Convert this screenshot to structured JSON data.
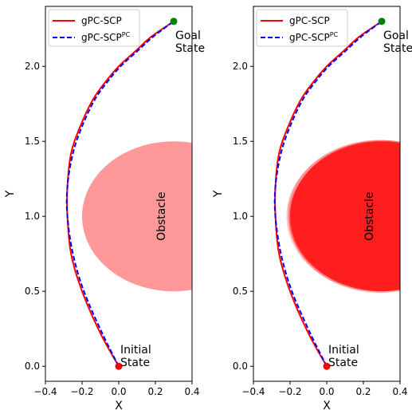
{
  "chart_data": [
    {
      "type": "line",
      "xlabel": "X",
      "ylabel": "Y",
      "xlim": [
        -0.4,
        0.4
      ],
      "ylim": [
        -0.1,
        2.4
      ],
      "xticks": [
        "−0.4",
        "−0.2",
        "0.0",
        "0.2",
        "0.4"
      ],
      "yticks": [
        "0.0",
        "0.5",
        "1.0",
        "1.5",
        "2.0"
      ],
      "grid": false,
      "legend_position": "top-left",
      "series": [
        {
          "name": "gPC-SCP",
          "color": "#ff0000",
          "style": "solid",
          "x": [
            0.0,
            -0.1,
            -0.2,
            -0.26,
            -0.28,
            -0.28,
            -0.26,
            -0.21,
            -0.14,
            -0.07,
            0.0,
            0.09,
            0.18,
            0.3
          ],
          "y": [
            0.0,
            0.22,
            0.5,
            0.75,
            1.0,
            1.2,
            1.42,
            1.6,
            1.78,
            1.9,
            2.0,
            2.1,
            2.2,
            2.3
          ]
        },
        {
          "name": "gPC-SCP^PC",
          "color": "#0000ff",
          "style": "dashed",
          "x": [
            0.0,
            -0.09,
            -0.19,
            -0.25,
            -0.28,
            -0.28,
            -0.25,
            -0.2,
            -0.13,
            -0.06,
            0.01,
            0.1,
            0.19,
            0.3
          ],
          "y": [
            0.0,
            0.22,
            0.5,
            0.75,
            1.0,
            1.2,
            1.42,
            1.6,
            1.78,
            1.9,
            2.0,
            2.1,
            2.2,
            2.3
          ]
        }
      ],
      "points": [
        {
          "name": "initial",
          "x": 0.0,
          "y": 0.0,
          "color": "#ff0000"
        },
        {
          "name": "goal",
          "x": 0.3,
          "y": 2.3,
          "color": "#008000"
        }
      ],
      "obstacle": {
        "cx": 0.3,
        "cy": 1.0,
        "r": 0.5,
        "color": "#ff9999",
        "label": "Obstacle"
      },
      "annotations": {
        "initial": [
          "Initial",
          "State"
        ],
        "goal": [
          "Goal",
          "State"
        ]
      }
    },
    {
      "type": "line",
      "xlabel": "X",
      "ylabel": "Y",
      "xlim": [
        -0.4,
        0.4
      ],
      "ylim": [
        -0.1,
        2.4
      ],
      "xticks": [
        "−0.4",
        "−0.2",
        "0.0",
        "0.2",
        "0.4"
      ],
      "yticks": [
        "0.0",
        "0.5",
        "1.0",
        "1.5",
        "2.0"
      ],
      "grid": false,
      "legend_position": "top-left",
      "series": [
        {
          "name": "gPC-SCP",
          "color": "#ff0000",
          "style": "solid",
          "x": [
            0.0,
            -0.1,
            -0.2,
            -0.26,
            -0.28,
            -0.28,
            -0.26,
            -0.21,
            -0.14,
            -0.07,
            0.0,
            0.09,
            0.18,
            0.3
          ],
          "y": [
            0.0,
            0.22,
            0.5,
            0.75,
            1.0,
            1.2,
            1.42,
            1.6,
            1.78,
            1.9,
            2.0,
            2.1,
            2.2,
            2.3
          ]
        },
        {
          "name": "gPC-SCP^PC",
          "color": "#0000ff",
          "style": "dashed",
          "x": [
            0.0,
            -0.09,
            -0.19,
            -0.25,
            -0.28,
            -0.28,
            -0.25,
            -0.2,
            -0.13,
            -0.06,
            0.01,
            0.1,
            0.19,
            0.3
          ],
          "y": [
            0.0,
            0.22,
            0.5,
            0.75,
            1.0,
            1.2,
            1.42,
            1.6,
            1.78,
            1.9,
            2.0,
            2.1,
            2.2,
            2.3
          ]
        }
      ],
      "points": [
        {
          "name": "initial",
          "x": 0.0,
          "y": 0.0,
          "color": "#ff0000"
        },
        {
          "name": "goal",
          "x": 0.3,
          "y": 2.3,
          "color": "#008000"
        }
      ],
      "obstacle": {
        "cx": 0.3,
        "cy": 1.0,
        "r": 0.5,
        "color": "#ff1a1a",
        "label": "Obstacle",
        "uncertainty_samples": true
      },
      "annotations": {
        "initial": [
          "Initial",
          "State"
        ],
        "goal": [
          "Goal",
          "State"
        ]
      }
    }
  ]
}
